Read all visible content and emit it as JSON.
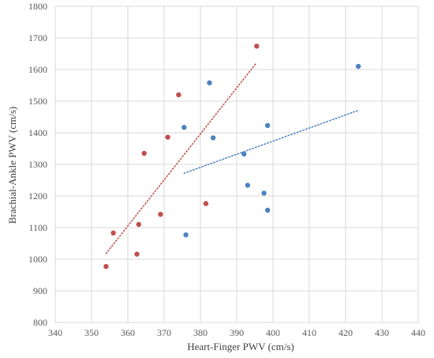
{
  "chart_data": {
    "type": "scatter",
    "title": "",
    "xlabel": "Heart-Finger PWV (cm/s)",
    "ylabel": "Brachial-Ankle PWV (cm/s)",
    "xlim": [
      340,
      440
    ],
    "ylim": [
      800,
      1800
    ],
    "x_ticks": [
      "340",
      "350",
      "360",
      "370",
      "380",
      "390",
      "400",
      "410",
      "420",
      "430",
      "440"
    ],
    "y_ticks": [
      "800",
      "900",
      "1000",
      "1100",
      "1200",
      "1300",
      "1400",
      "1500",
      "1600",
      "1700",
      "1800"
    ],
    "grid": true,
    "legend": "none",
    "series": [
      {
        "color": "#c0504d",
        "points": [
          {
            "x": 354.0,
            "y": 977
          },
          {
            "x": 356.0,
            "y": 1083
          },
          {
            "x": 362.5,
            "y": 1016
          },
          {
            "x": 363.0,
            "y": 1110
          },
          {
            "x": 364.5,
            "y": 1335
          },
          {
            "x": 369.0,
            "y": 1142
          },
          {
            "x": 371.0,
            "y": 1386
          },
          {
            "x": 374.0,
            "y": 1520
          },
          {
            "x": 381.5,
            "y": 1176
          },
          {
            "x": 395.5,
            "y": 1674
          }
        ],
        "trendline": {
          "style": "dotted",
          "x": [
            354,
            395.5
          ],
          "y": [
            1018,
            1622
          ]
        }
      },
      {
        "color": "#4f81bd",
        "points": [
          {
            "x": 375.5,
            "y": 1417
          },
          {
            "x": 376.0,
            "y": 1077
          },
          {
            "x": 382.5,
            "y": 1558
          },
          {
            "x": 383.5,
            "y": 1384
          },
          {
            "x": 392.0,
            "y": 1333
          },
          {
            "x": 393.0,
            "y": 1234
          },
          {
            "x": 397.5,
            "y": 1209
          },
          {
            "x": 398.5,
            "y": 1155
          },
          {
            "x": 398.5,
            "y": 1423
          },
          {
            "x": 423.5,
            "y": 1610
          }
        ],
        "trendline": {
          "style": "dotted",
          "x": [
            375.5,
            423.5
          ],
          "y": [
            1272,
            1471
          ]
        }
      }
    ]
  }
}
